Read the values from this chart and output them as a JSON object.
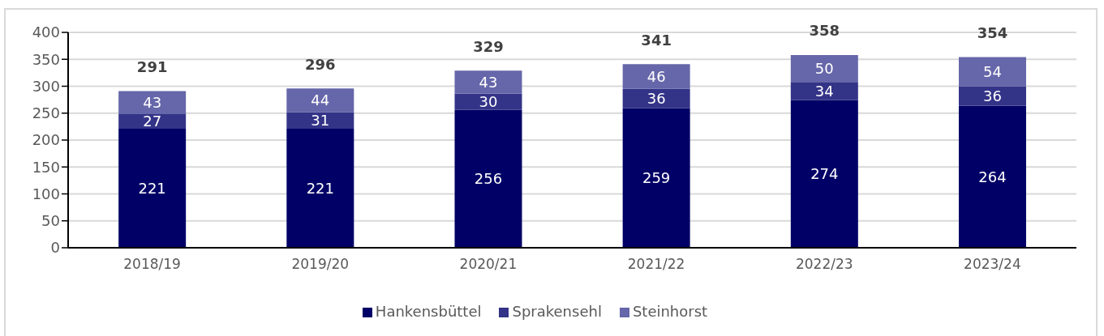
{
  "chart_data": {
    "type": "bar",
    "categories": [
      "2018/19",
      "2019/20",
      "2020/21",
      "2021/22",
      "2022/23",
      "2023/24"
    ],
    "series": [
      {
        "name": "Hankensbüttel",
        "color": "#000066",
        "values": [
          221,
          221,
          256,
          259,
          274,
          264
        ]
      },
      {
        "name": "Sprakensehl",
        "color": "#333388",
        "values": [
          27,
          31,
          30,
          36,
          34,
          36
        ]
      },
      {
        "name": "Steinhorst",
        "color": "#6666aa",
        "values": [
          43,
          44,
          43,
          46,
          50,
          54
        ]
      }
    ],
    "stacked": true,
    "totals": [
      "291",
      "296",
      "329",
      "341",
      "358",
      "354"
    ],
    "data_labels": true,
    "ylim": [
      0,
      400
    ],
    "yticks": [
      0,
      50,
      100,
      150,
      200,
      250,
      300,
      350,
      400
    ],
    "grid": "y",
    "legend": "bottom"
  }
}
